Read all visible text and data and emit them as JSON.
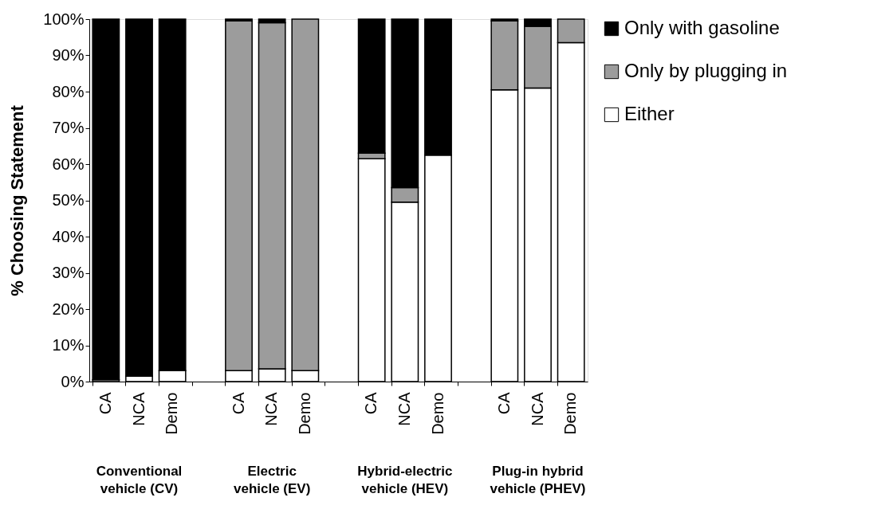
{
  "chart_data": {
    "type": "bar",
    "stacked": true,
    "ylabel": "% Choosing Statement",
    "categories": [
      "CA",
      "NCA",
      "Demo",
      null,
      "CA",
      "NCA",
      "Demo",
      null,
      "CA",
      "NCA",
      "Demo",
      null,
      "CA",
      "NCA",
      "Demo"
    ],
    "series": [
      {
        "name": "Either",
        "color": "#ffffff",
        "values": [
          0.5,
          1.5,
          3,
          null,
          3,
          3.5,
          3,
          null,
          61.5,
          49.5,
          62.5,
          null,
          80.5,
          81,
          93.5
        ]
      },
      {
        "name": "Only by plugging in",
        "color": "#9c9c9c",
        "values": [
          0,
          0,
          0,
          null,
          96.5,
          95.5,
          97,
          null,
          1.5,
          4,
          0,
          null,
          19,
          17,
          6.5
        ]
      },
      {
        "name": "Only with gasoline",
        "color": "#000000",
        "values": [
          99.5,
          98.5,
          97,
          null,
          0.5,
          1,
          0,
          null,
          37,
          46.5,
          37.5,
          null,
          0.5,
          2,
          0
        ]
      }
    ],
    "ylim": [
      0,
      100
    ],
    "yticks": [
      {
        "value": 0,
        "label": "0%"
      },
      {
        "value": 10,
        "label": "10%"
      },
      {
        "value": 20,
        "label": "20%"
      },
      {
        "value": 30,
        "label": "30%"
      },
      {
        "value": 40,
        "label": "40%"
      },
      {
        "value": 50,
        "label": "50%"
      },
      {
        "value": 60,
        "label": "60%"
      },
      {
        "value": 70,
        "label": "70%"
      },
      {
        "value": 80,
        "label": "80%"
      },
      {
        "value": 90,
        "label": "90%"
      },
      {
        "value": 100,
        "label": "100%"
      }
    ],
    "annotations": [
      "Conventional\nvehicle (CV)",
      "Electric\nvehicle (EV)",
      "Hybrid-electric\nvehicle (HEV)",
      "Plug-in hybrid\nvehicle (PHEV)"
    ],
    "legend": "right",
    "grid": false
  }
}
